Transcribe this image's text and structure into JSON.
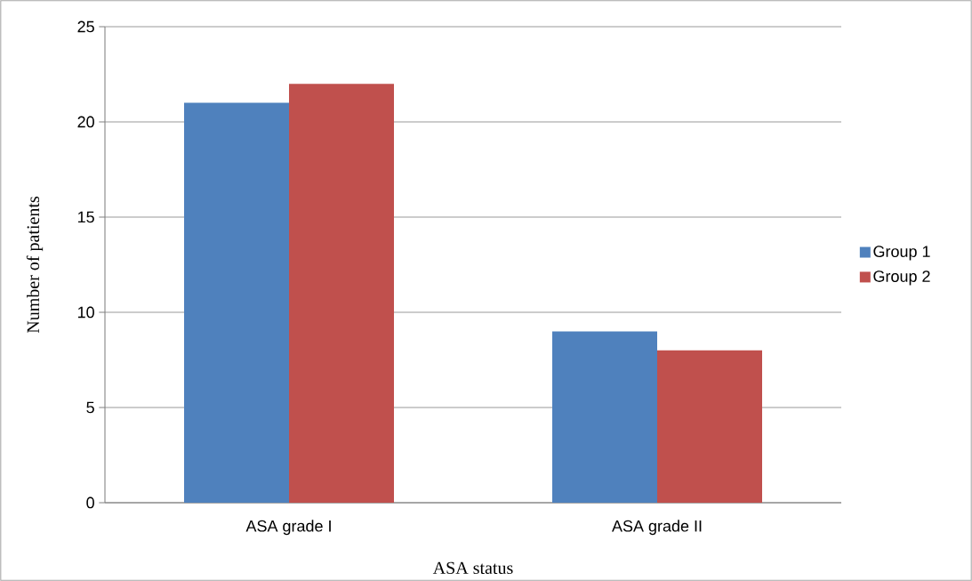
{
  "chart_data": {
    "type": "bar",
    "xlabel": "ASA status",
    "ylabel": "Number of patients",
    "categories": [
      "ASA grade I",
      "ASA grade II"
    ],
    "series": [
      {
        "name": "Group 1",
        "color": "#4f81bd",
        "values": [
          21,
          9
        ]
      },
      {
        "name": "Group 2",
        "color": "#c0504d",
        "values": [
          22,
          8
        ]
      }
    ],
    "ylim": [
      0,
      25
    ],
    "yticks": [
      0,
      5,
      10,
      15,
      20,
      25
    ],
    "grid": "y",
    "legend": "right"
  }
}
